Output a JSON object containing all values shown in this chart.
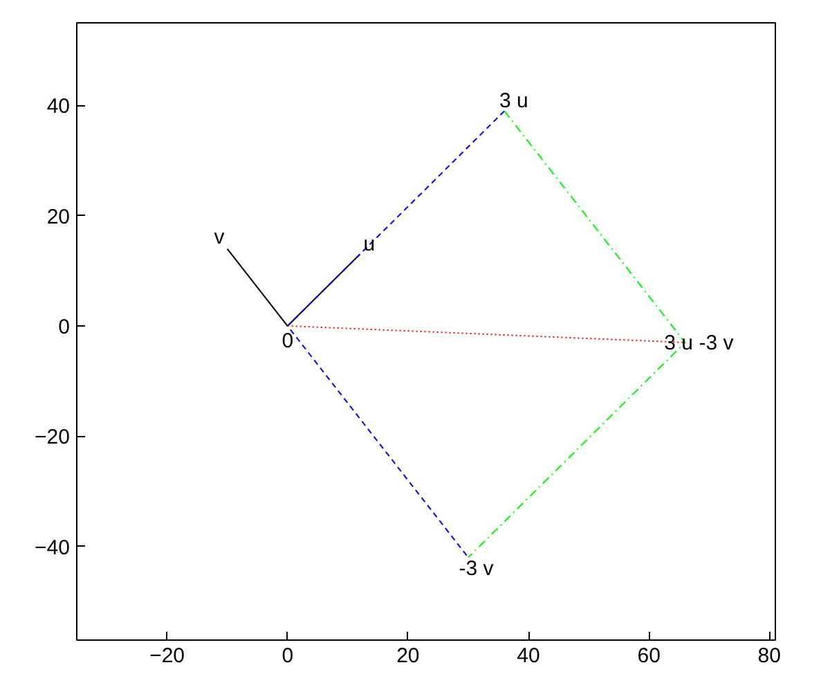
{
  "chart_data": {
    "type": "line",
    "xlim": [
      -35,
      81
    ],
    "ylim": [
      -57,
      55
    ],
    "xticks": [
      -20,
      0,
      20,
      40,
      60,
      80
    ],
    "yticks": [
      -40,
      -20,
      0,
      20,
      40
    ],
    "grid": false,
    "marker": "none",
    "series": [
      {
        "color": "#000000",
        "x": [
          0,
          12
        ],
        "values": [
          0,
          13
        ],
        "line_style": "solid"
      },
      {
        "color": "#000000",
        "x": [
          0,
          -10
        ],
        "values": [
          0,
          14
        ],
        "line_style": "solid"
      },
      {
        "color": "#0000ff",
        "x": [
          36,
          0,
          30
        ],
        "values": [
          39,
          0,
          -42
        ],
        "line_style": "dashed"
      },
      {
        "color": "#00ff00",
        "x": [
          36,
          66,
          30
        ],
        "values": [
          39,
          -3,
          -42
        ],
        "line_style": "dashdot"
      },
      {
        "color": "#ff0000",
        "x": [
          0,
          66
        ],
        "values": [
          0,
          -3
        ],
        "line_style": "dotted"
      }
    ],
    "annotations": [
      {
        "text": "u",
        "x": 12,
        "y": 13
      },
      {
        "text": "v",
        "x": -10,
        "y": 14
      },
      {
        "text": "0",
        "x": 0,
        "y": 0
      },
      {
        "text": "3 u",
        "x": 36,
        "y": 39
      },
      {
        "text": "-3 v",
        "x": 30,
        "y": -42
      },
      {
        "text": "3 u -3 v",
        "x": 66,
        "y": -3
      }
    ]
  }
}
